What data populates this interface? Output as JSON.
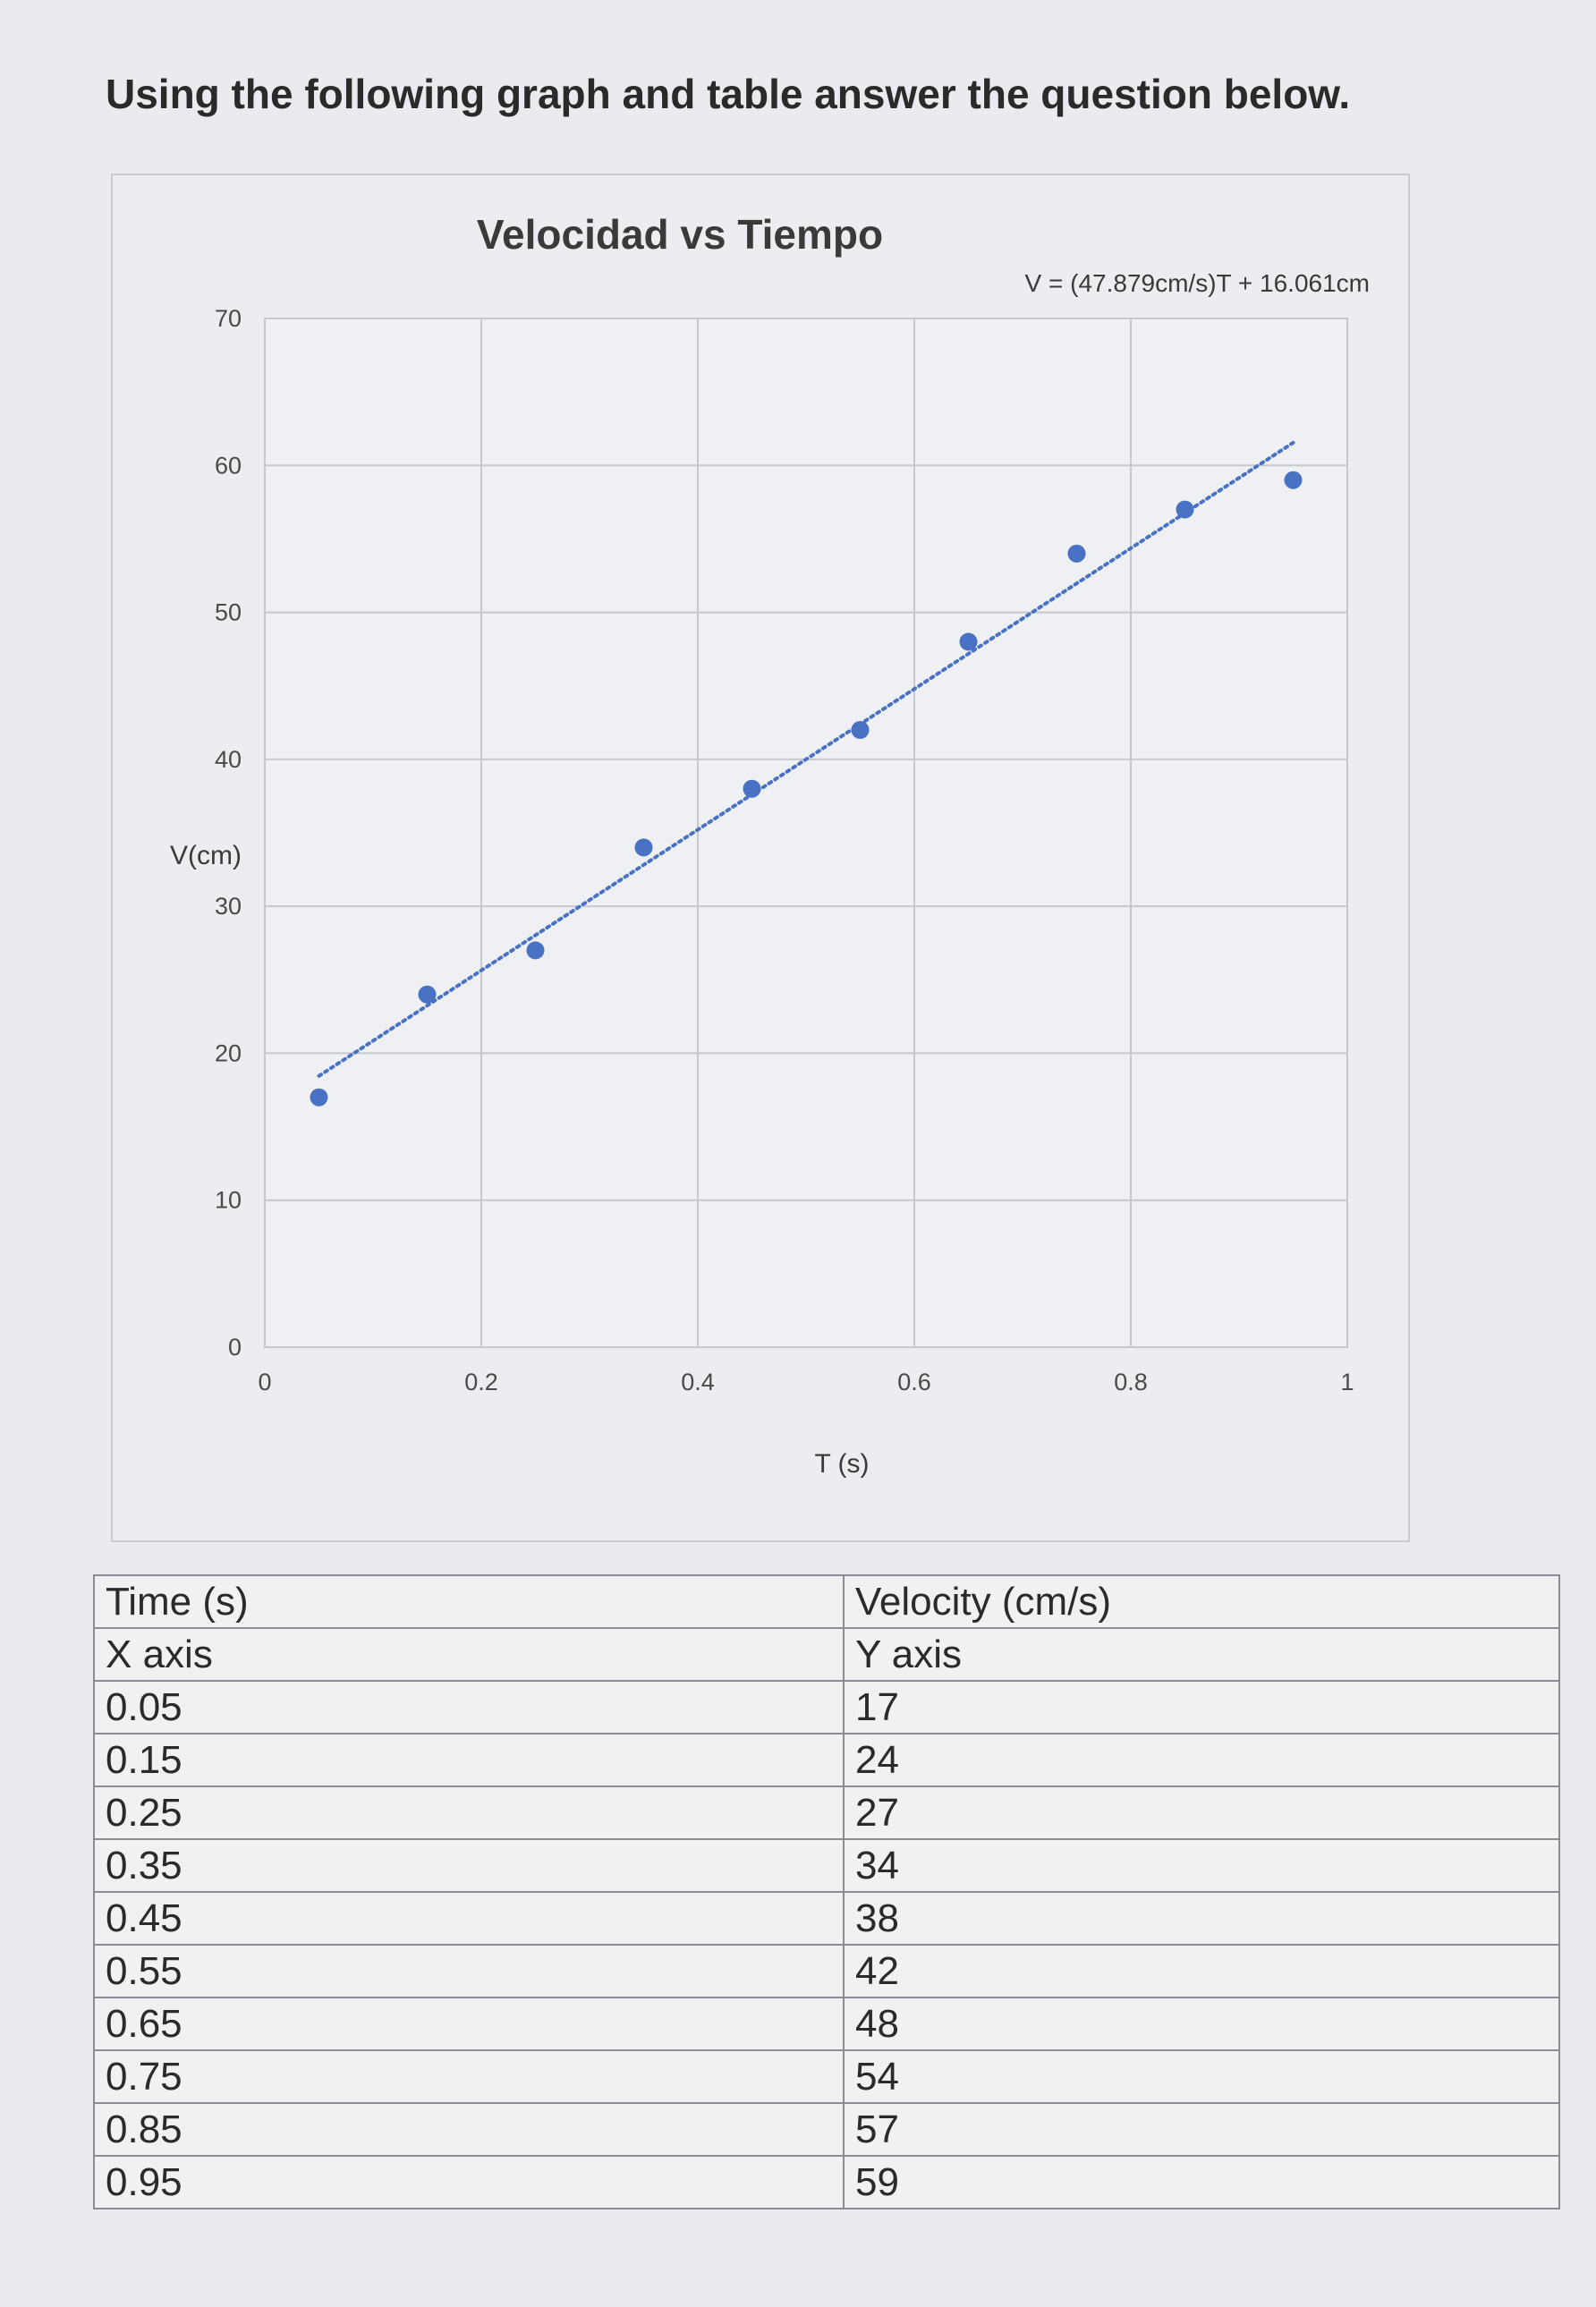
{
  "prompt": "Using the following graph and table answer the question below.",
  "chart_data": {
    "type": "scatter",
    "title": "Velocidad vs Tiempo",
    "xlabel": "T (s)",
    "ylabel": "V(cm)",
    "xlim": [
      0,
      1
    ],
    "ylim": [
      0,
      70
    ],
    "xticks": [
      "0",
      "0.2",
      "0.4",
      "0.6",
      "0.8",
      "1"
    ],
    "yticks": [
      "0",
      "10",
      "20",
      "30",
      "40",
      "50",
      "60",
      "70"
    ],
    "grid": true,
    "points": [
      {
        "x": 0.05,
        "y": 17
      },
      {
        "x": 0.15,
        "y": 24
      },
      {
        "x": 0.25,
        "y": 27
      },
      {
        "x": 0.35,
        "y": 34
      },
      {
        "x": 0.45,
        "y": 38
      },
      {
        "x": 0.55,
        "y": 42
      },
      {
        "x": 0.65,
        "y": 48
      },
      {
        "x": 0.75,
        "y": 54
      },
      {
        "x": 0.85,
        "y": 57
      },
      {
        "x": 0.95,
        "y": 59
      }
    ],
    "trendline": {
      "slope": 47.879,
      "intercept": 16.061,
      "style": "dotted"
    },
    "trendline_label": "V = (47.879cm/s)T + 16.061cm",
    "point_color": "#4a72c4",
    "trendline_color": "#4a72c4"
  },
  "table": {
    "headers": [
      "Time (s)",
      "Velocity (cm/s)"
    ],
    "subheaders": [
      "X axis",
      "Y axis"
    ],
    "rows": [
      [
        "0.05",
        "17"
      ],
      [
        "0.15",
        "24"
      ],
      [
        "0.25",
        "27"
      ],
      [
        "0.35",
        "34"
      ],
      [
        "0.45",
        "38"
      ],
      [
        "0.55",
        "42"
      ],
      [
        "0.65",
        "48"
      ],
      [
        "0.75",
        "54"
      ],
      [
        "0.85",
        "57"
      ],
      [
        "0.95",
        "59"
      ]
    ]
  }
}
